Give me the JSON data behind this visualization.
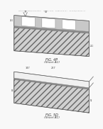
{
  "bg_color": "#f8f8f8",
  "header_text": "Patent Application Publication     May 22, 2014    Sheet 44 of 147    US 2014/0141547 A1",
  "fig1": {
    "label": "FIG. 4P",
    "sublabel": "(Sheet AC)",
    "anno_77": "77",
    "anno_57": "57",
    "anno_left": "241",
    "anno_right": "241"
  },
  "fig2": {
    "label": "FIG. 5D",
    "sublabel": "(Sheet AC)",
    "anno_top_left": "147",
    "anno_top_right": "227",
    "anno_left": "54",
    "anno_right": "52"
  }
}
